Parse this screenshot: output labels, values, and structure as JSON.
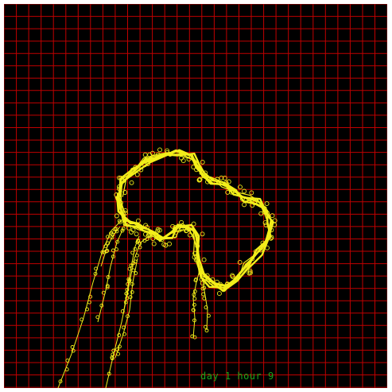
{
  "view": {
    "status_text": "day 1 hour 9"
  },
  "colors": {
    "background": "#000000",
    "grid": "#c00000",
    "track": "#f2ee1a",
    "status": "#1aa51a",
    "frame": "#ffffff"
  },
  "icons": {
    "marker": "circle-marker-icon"
  }
}
